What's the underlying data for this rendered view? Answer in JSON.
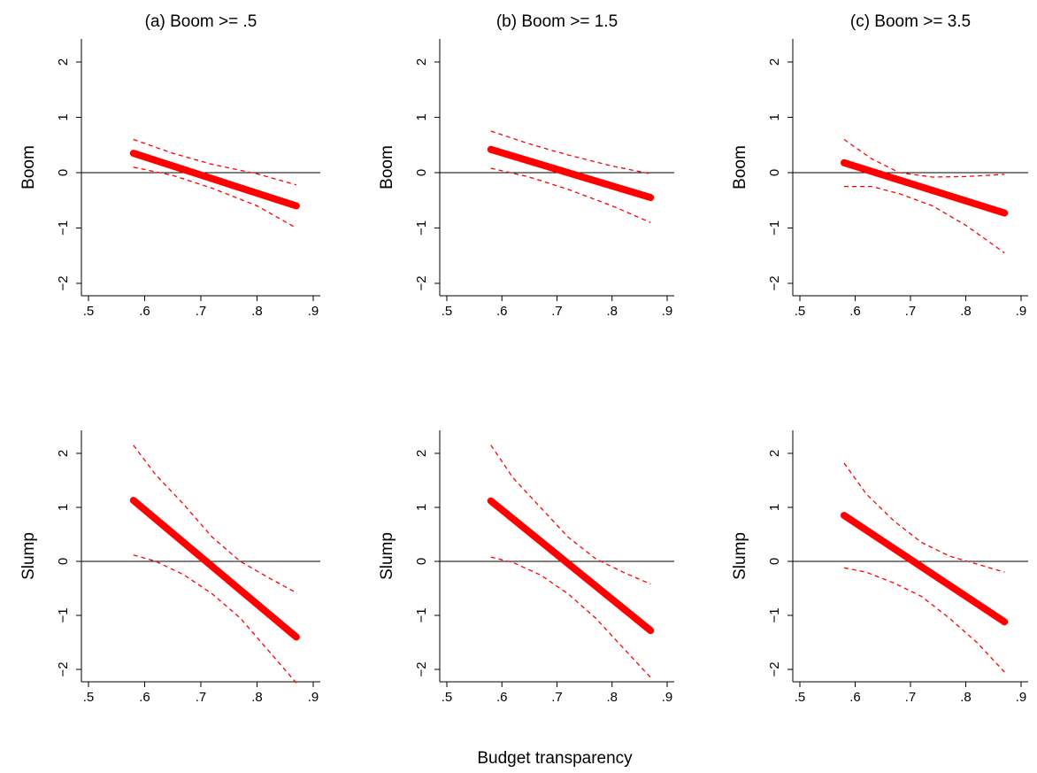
{
  "figure": {
    "xlabel": "Budget transparency"
  },
  "chart_data": [
    {
      "type": "line",
      "title": "(a) Boom >= .5",
      "xlabel": "",
      "ylabel": "Boom",
      "xlim": [
        0.5,
        0.9
      ],
      "ylim": [
        -2,
        2
      ],
      "xticks": [
        ".5",
        ".6",
        ".7",
        ".8",
        ".9"
      ],
      "yticks": [
        "−2",
        "−1",
        "0",
        "1",
        "2"
      ],
      "x": [
        0.58,
        0.87
      ],
      "series": [
        {
          "role": "estimate",
          "x": [
            0.58,
            0.87
          ],
          "y": [
            0.35,
            -0.6
          ]
        },
        {
          "role": "upper",
          "x": [
            0.58,
            0.65,
            0.72,
            0.8,
            0.87
          ],
          "y": [
            0.6,
            0.35,
            0.15,
            -0.02,
            -0.22
          ]
        },
        {
          "role": "lower",
          "x": [
            0.58,
            0.65,
            0.72,
            0.8,
            0.87
          ],
          "y": [
            0.1,
            -0.05,
            -0.28,
            -0.6,
            -1.0
          ]
        }
      ],
      "reference_line": 0,
      "grid": false,
      "legend": "none"
    },
    {
      "type": "line",
      "title": "(b) Boom >= 1.5",
      "xlabel": "",
      "ylabel": "Boom",
      "xlim": [
        0.5,
        0.9
      ],
      "ylim": [
        -2,
        2
      ],
      "xticks": [
        ".5",
        ".6",
        ".7",
        ".8",
        ".9"
      ],
      "yticks": [
        "−2",
        "−1",
        "0",
        "1",
        "2"
      ],
      "x": [
        0.58,
        0.87
      ],
      "series": [
        {
          "role": "estimate",
          "x": [
            0.58,
            0.87
          ],
          "y": [
            0.42,
            -0.45
          ]
        },
        {
          "role": "upper",
          "x": [
            0.58,
            0.65,
            0.72,
            0.8,
            0.87
          ],
          "y": [
            0.75,
            0.52,
            0.32,
            0.12,
            -0.02
          ]
        },
        {
          "role": "lower",
          "x": [
            0.58,
            0.65,
            0.72,
            0.8,
            0.87
          ],
          "y": [
            0.08,
            -0.08,
            -0.3,
            -0.6,
            -0.9
          ]
        }
      ],
      "reference_line": 0,
      "grid": false,
      "legend": "none"
    },
    {
      "type": "line",
      "title": "(c) Boom >= 3.5",
      "xlabel": "",
      "ylabel": "Boom",
      "xlim": [
        0.5,
        0.9
      ],
      "ylim": [
        -2,
        2
      ],
      "xticks": [
        ".5",
        ".6",
        ".7",
        ".8",
        ".9"
      ],
      "yticks": [
        "−2",
        "−1",
        "0",
        "1",
        "2"
      ],
      "x": [
        0.58,
        0.87
      ],
      "series": [
        {
          "role": "estimate",
          "x": [
            0.58,
            0.87
          ],
          "y": [
            0.18,
            -0.73
          ]
        },
        {
          "role": "upper",
          "x": [
            0.58,
            0.63,
            0.68,
            0.74,
            0.8,
            0.87
          ],
          "y": [
            0.6,
            0.25,
            0.0,
            -0.08,
            -0.07,
            -0.03
          ]
        },
        {
          "role": "lower",
          "x": [
            0.58,
            0.63,
            0.68,
            0.74,
            0.8,
            0.87
          ],
          "y": [
            -0.25,
            -0.25,
            -0.38,
            -0.6,
            -0.95,
            -1.45
          ]
        }
      ],
      "reference_line": 0,
      "grid": false,
      "legend": "none"
    },
    {
      "type": "line",
      "title": "",
      "xlabel": "",
      "ylabel": "Slump",
      "xlim": [
        0.5,
        0.9
      ],
      "ylim": [
        -2,
        2
      ],
      "xticks": [
        ".5",
        ".6",
        ".7",
        ".8",
        ".9"
      ],
      "yticks": [
        "−2",
        "−1",
        "0",
        "1",
        "2"
      ],
      "x": [
        0.58,
        0.87
      ],
      "series": [
        {
          "role": "estimate",
          "x": [
            0.58,
            0.87
          ],
          "y": [
            1.13,
            -1.4
          ]
        },
        {
          "role": "upper",
          "x": [
            0.58,
            0.62,
            0.67,
            0.72,
            0.77,
            0.82,
            0.87
          ],
          "y": [
            2.15,
            1.6,
            1.05,
            0.45,
            0.0,
            -0.3,
            -0.58
          ]
        },
        {
          "role": "lower",
          "x": [
            0.58,
            0.62,
            0.67,
            0.72,
            0.77,
            0.82,
            0.87
          ],
          "y": [
            0.12,
            0.0,
            -0.25,
            -0.6,
            -1.05,
            -1.65,
            -2.25
          ]
        }
      ],
      "reference_line": 0,
      "grid": false,
      "legend": "none"
    },
    {
      "type": "line",
      "title": "",
      "xlabel": "",
      "ylabel": "Slump",
      "xlim": [
        0.5,
        0.9
      ],
      "ylim": [
        -2,
        2
      ],
      "xticks": [
        ".5",
        ".6",
        ".7",
        ".8",
        ".9"
      ],
      "yticks": [
        "−2",
        "−1",
        "0",
        "1",
        "2"
      ],
      "x": [
        0.58,
        0.87
      ],
      "series": [
        {
          "role": "estimate",
          "x": [
            0.58,
            0.87
          ],
          "y": [
            1.12,
            -1.28
          ]
        },
        {
          "role": "upper",
          "x": [
            0.58,
            0.62,
            0.67,
            0.72,
            0.77,
            0.82,
            0.87
          ],
          "y": [
            2.15,
            1.55,
            1.0,
            0.45,
            0.05,
            -0.2,
            -0.42
          ]
        },
        {
          "role": "lower",
          "x": [
            0.58,
            0.62,
            0.67,
            0.72,
            0.77,
            0.82,
            0.87
          ],
          "y": [
            0.08,
            -0.02,
            -0.25,
            -0.6,
            -1.05,
            -1.6,
            -2.15
          ]
        }
      ],
      "reference_line": 0,
      "grid": false,
      "legend": "none"
    },
    {
      "type": "line",
      "title": "",
      "xlabel": "",
      "ylabel": "Slump",
      "xlim": [
        0.5,
        0.9
      ],
      "ylim": [
        -2,
        2
      ],
      "xticks": [
        ".5",
        ".6",
        ".7",
        ".8",
        ".9"
      ],
      "yticks": [
        "−2",
        "−1",
        "0",
        "1",
        "2"
      ],
      "x": [
        0.58,
        0.87
      ],
      "series": [
        {
          "role": "estimate",
          "x": [
            0.58,
            0.87
          ],
          "y": [
            0.85,
            -1.12
          ]
        },
        {
          "role": "upper",
          "x": [
            0.58,
            0.62,
            0.67,
            0.72,
            0.77,
            0.82,
            0.87
          ],
          "y": [
            1.82,
            1.25,
            0.75,
            0.35,
            0.1,
            -0.05,
            -0.2
          ]
        },
        {
          "role": "lower",
          "x": [
            0.58,
            0.62,
            0.67,
            0.72,
            0.77,
            0.82,
            0.87
          ],
          "y": [
            -0.12,
            -0.2,
            -0.4,
            -0.65,
            -1.05,
            -1.5,
            -2.05
          ]
        }
      ],
      "reference_line": 0,
      "grid": false,
      "legend": "none"
    }
  ]
}
